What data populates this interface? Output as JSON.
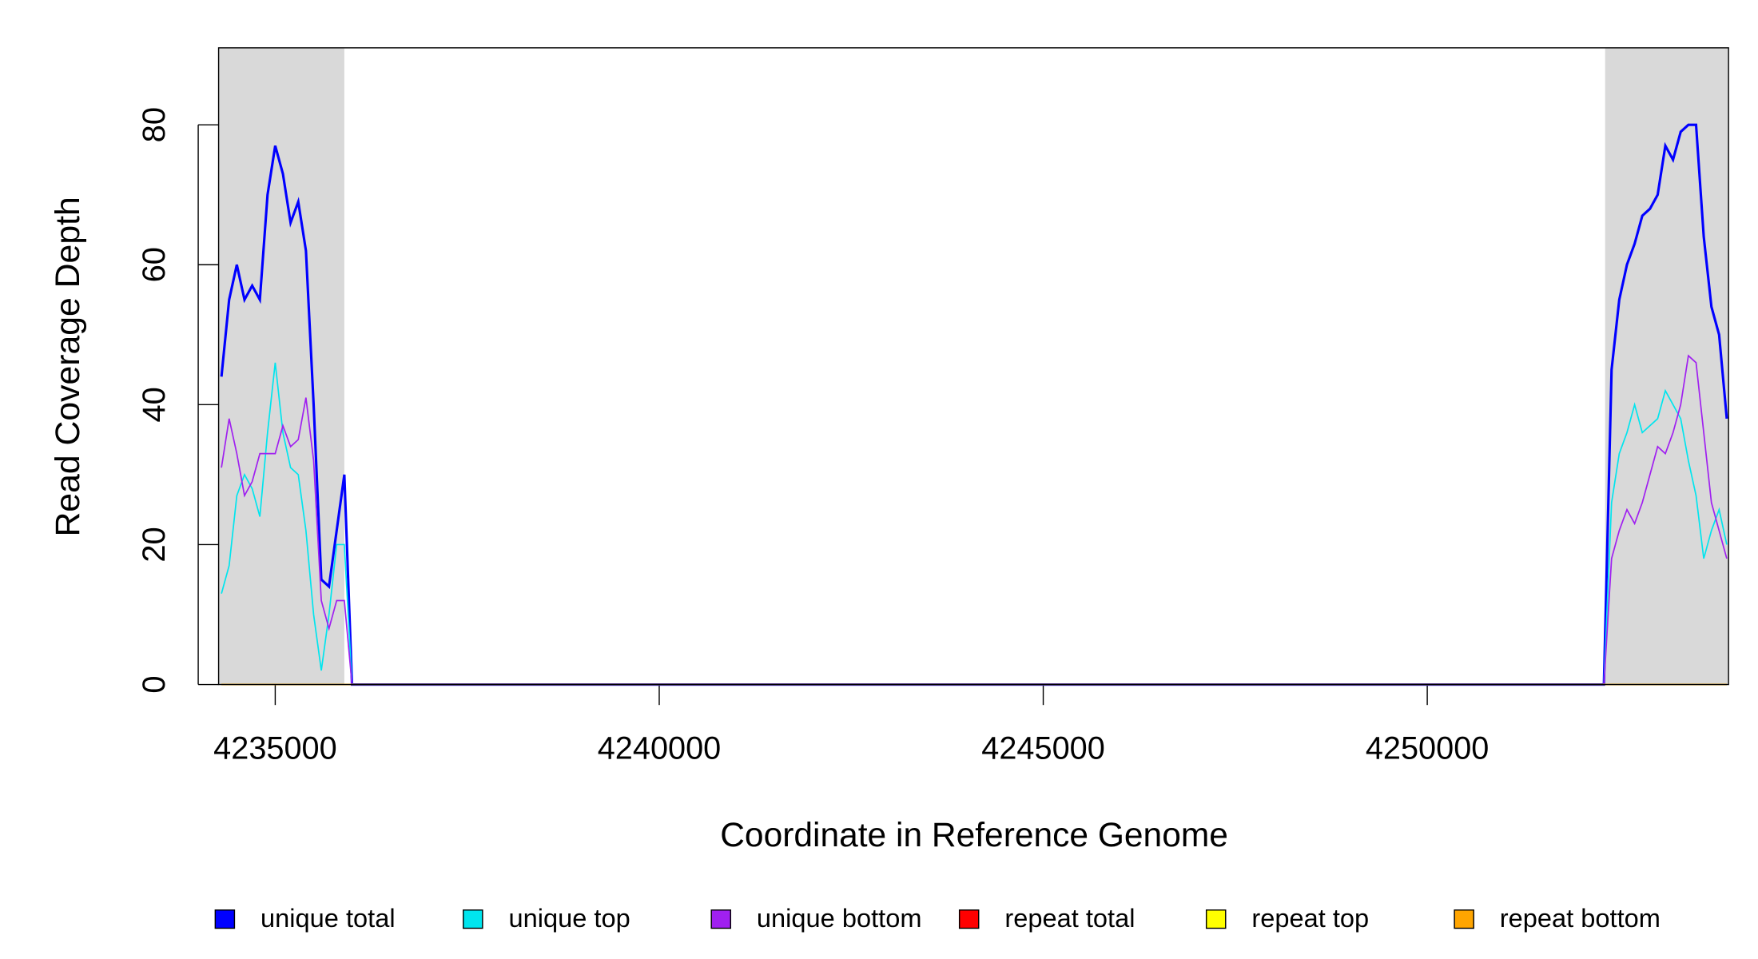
{
  "chart_data": {
    "type": "line",
    "xlabel": "Coordinate in Reference Genome",
    "ylabel": "Read Coverage Depth",
    "x": [
      4234300,
      4234400,
      4234500,
      4234600,
      4234700,
      4234800,
      4234900,
      4235000,
      4235100,
      4235200,
      4235300,
      4235400,
      4235500,
      4235600,
      4235700,
      4235800,
      4235900,
      4236000,
      4252300,
      4252400,
      4252500,
      4252600,
      4252700,
      4252800,
      4252900,
      4253000,
      4253100,
      4253200,
      4253300,
      4253400,
      4253500,
      4253600,
      4253700,
      4253800,
      4253900
    ],
    "series": [
      {
        "name": "unique total",
        "color": "#0000ff",
        "values": [
          44,
          55,
          60,
          55,
          57,
          55,
          70,
          77,
          73,
          66,
          69,
          62,
          40,
          15,
          14,
          22,
          30,
          0,
          0,
          45,
          55,
          60,
          63,
          67,
          68,
          70,
          77,
          75,
          79,
          80,
          80,
          64,
          54,
          50,
          38
        ]
      },
      {
        "name": "unique top",
        "color": "#00e5ee",
        "values": [
          13,
          17,
          27,
          30,
          28,
          24,
          36,
          46,
          36,
          31,
          30,
          22,
          10,
          2,
          10,
          20,
          20,
          0,
          0,
          26,
          33,
          36,
          40,
          36,
          37,
          38,
          42,
          40,
          38,
          32,
          27,
          18,
          22,
          25,
          20
        ]
      },
      {
        "name": "unique bottom",
        "color": "#a020f0",
        "values": [
          31,
          38,
          33,
          27,
          29,
          33,
          33,
          33,
          37,
          34,
          35,
          41,
          32,
          12,
          8,
          12,
          12,
          0,
          0,
          18,
          22,
          25,
          23,
          26,
          30,
          34,
          33,
          36,
          40,
          47,
          46,
          36,
          26,
          22,
          18
        ]
      },
      {
        "name": "repeat total",
        "color": "#ff0000",
        "values": [
          0,
          0,
          0,
          0,
          0,
          0,
          0,
          0,
          0,
          0,
          0,
          0,
          0,
          0,
          0,
          0,
          0,
          0,
          0,
          0,
          0,
          0,
          0,
          0,
          0,
          0,
          0,
          0,
          0,
          0,
          0,
          0,
          0,
          0,
          0
        ]
      },
      {
        "name": "repeat top",
        "color": "#ffff00",
        "values": [
          0,
          0,
          0,
          0,
          0,
          0,
          0,
          0,
          0,
          0,
          0,
          0,
          0,
          0,
          0,
          0,
          0,
          0,
          0,
          0,
          0,
          0,
          0,
          0,
          0,
          0,
          0,
          0,
          0,
          0,
          0,
          0,
          0,
          0,
          0
        ]
      },
      {
        "name": "repeat bottom",
        "color": "#ffa500",
        "values": [
          0,
          0,
          0,
          0,
          0,
          0,
          0,
          0,
          0,
          0,
          0,
          0,
          0,
          0,
          0,
          0,
          0,
          0,
          0,
          0,
          0,
          0,
          0,
          0,
          0,
          0,
          0,
          0,
          0,
          0,
          0,
          0,
          0,
          0,
          0
        ]
      }
    ],
    "shaded_regions": [
      [
        4234263,
        4235900
      ],
      [
        4252316,
        4253923
      ]
    ],
    "shade_color": "#d9d9d9",
    "xlim": [
      4234263,
      4253923
    ],
    "xticks": [
      4235000,
      4240000,
      4245000,
      4250000
    ],
    "ylim": [
      0,
      91
    ],
    "yticks": [
      0,
      20,
      40,
      60,
      80
    ],
    "legend": "bottom"
  }
}
